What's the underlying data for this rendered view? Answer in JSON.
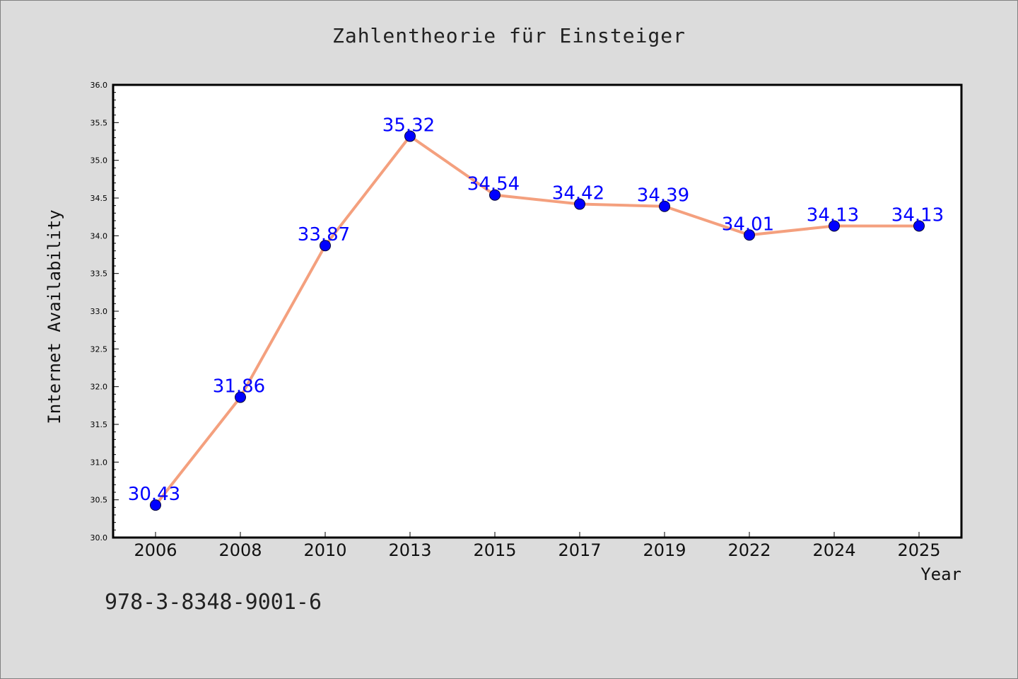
{
  "chart_data": {
    "type": "line",
    "title": "Zahlentheorie für Einsteiger",
    "xlabel": "Year",
    "ylabel": "Internet Availability",
    "categories": [
      "2006",
      "2008",
      "2010",
      "2013",
      "2015",
      "2017",
      "2019",
      "2022",
      "2024",
      "2025"
    ],
    "values": [
      30.43,
      31.86,
      33.87,
      35.32,
      34.54,
      34.42,
      34.39,
      34.01,
      34.13,
      34.13
    ],
    "data_labels": [
      "30.43",
      "31.86",
      "33.87",
      "35.32",
      "34.54",
      "34.42",
      "34.39",
      "34.01",
      "34.13",
      "34.13"
    ],
    "ylim": [
      30.0,
      36.0
    ],
    "yticks": [
      "30.0",
      "30.5",
      "31.0",
      "31.5",
      "32.0",
      "32.5",
      "33.0",
      "33.5",
      "34.0",
      "34.5",
      "35.0",
      "35.5",
      "36.0"
    ],
    "grid": false,
    "line_color": "#f4a07e",
    "marker_color": "#0000ff",
    "label_color": "#0000ff",
    "plot_background": "#ffffff",
    "page_background": "#dcdcdc"
  },
  "footer": {
    "isbn": "978-3-8348-9001-6"
  }
}
